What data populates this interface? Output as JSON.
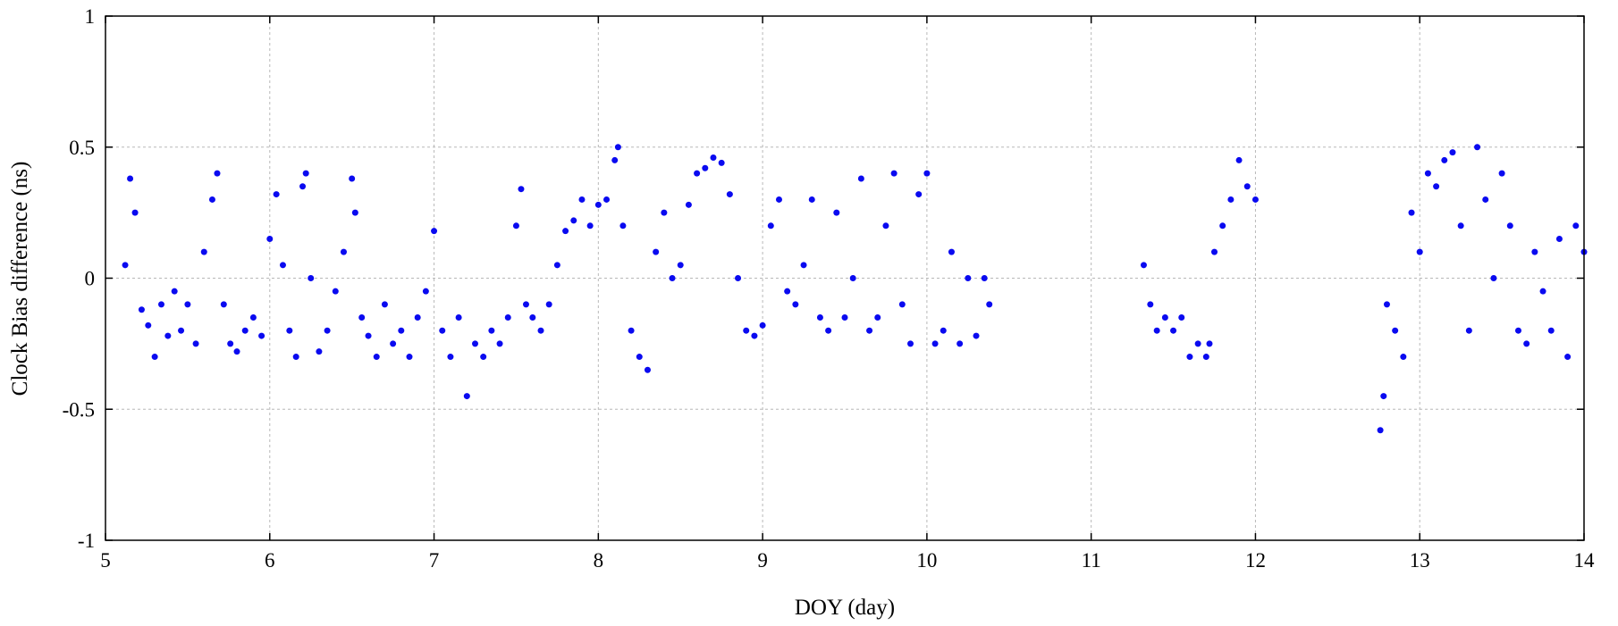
{
  "chart_data": {
    "type": "scatter",
    "title": "",
    "xlabel": "DOY (day)",
    "ylabel": "Clock Bias difference (ns)",
    "xlim": [
      5,
      14
    ],
    "ylim": [
      -1,
      1
    ],
    "x_ticks": [
      "5",
      "6",
      "7",
      "8",
      "9",
      "10",
      "11",
      "12",
      "13",
      "14"
    ],
    "y_ticks": [
      "1",
      "0.5",
      "0",
      "-0.5",
      "-1"
    ],
    "grid": true,
    "marker_color": "#0a0af0",
    "series": [
      {
        "x": [
          5.12,
          5.15,
          5.18,
          5.22,
          5.26,
          5.3,
          5.34,
          5.38,
          5.42,
          5.46,
          5.5,
          5.55,
          5.6,
          5.65,
          5.68,
          5.72,
          5.76,
          5.8,
          5.85,
          5.9,
          5.95,
          6.0,
          6.04,
          6.08,
          6.12,
          6.16,
          6.2,
          6.22,
          6.25,
          6.3,
          6.35,
          6.4,
          6.45,
          6.5,
          6.52,
          6.56,
          6.6,
          6.65,
          6.7,
          6.75,
          6.8,
          6.85,
          6.9,
          6.95,
          7.0,
          7.05,
          7.1,
          7.15,
          7.2,
          7.25,
          7.3,
          7.35,
          7.4,
          7.45,
          7.5,
          7.53,
          7.56,
          7.6,
          7.65,
          7.7,
          7.75,
          7.8,
          7.85,
          7.9,
          7.95,
          8.0,
          8.05,
          8.1,
          8.12,
          8.15,
          8.2,
          8.25,
          8.3,
          8.35,
          8.4,
          8.45,
          8.5,
          8.55,
          8.6,
          8.65,
          8.7,
          8.75,
          8.8,
          8.85,
          8.9,
          8.95,
          9.0,
          9.05,
          9.1,
          9.15,
          9.2,
          9.25,
          9.3,
          9.35,
          9.4,
          9.45,
          9.5,
          9.55,
          9.6,
          9.65,
          9.7,
          9.75,
          9.8,
          9.85,
          9.9,
          9.95,
          10.0,
          10.05,
          10.1,
          10.15,
          10.2,
          10.25,
          10.3,
          10.35,
          10.38,
          11.32,
          11.36,
          11.4,
          11.45,
          11.5,
          11.55,
          11.6,
          11.65,
          11.7,
          11.72,
          11.75,
          11.8,
          11.85,
          11.9,
          11.95,
          12.0,
          12.76,
          12.78,
          12.8,
          12.85,
          12.9,
          12.95,
          13.0,
          13.05,
          13.1,
          13.15,
          13.2,
          13.25,
          13.3,
          13.35,
          13.4,
          13.45,
          13.5,
          13.55,
          13.6,
          13.65,
          13.7,
          13.75,
          13.8,
          13.85,
          13.9,
          13.95,
          14.0
        ],
        "y": [
          0.05,
          0.38,
          0.25,
          -0.12,
          -0.18,
          -0.3,
          -0.1,
          -0.22,
          -0.05,
          -0.2,
          -0.1,
          -0.25,
          0.1,
          0.3,
          0.4,
          -0.1,
          -0.25,
          -0.28,
          -0.2,
          -0.15,
          -0.22,
          0.15,
          0.32,
          0.05,
          -0.2,
          -0.3,
          0.35,
          0.4,
          0.0,
          -0.28,
          -0.2,
          -0.05,
          0.1,
          0.38,
          0.25,
          -0.15,
          -0.22,
          -0.3,
          -0.1,
          -0.25,
          -0.2,
          -0.3,
          -0.15,
          -0.05,
          0.18,
          -0.2,
          -0.3,
          -0.15,
          -0.45,
          -0.25,
          -0.3,
          -0.2,
          -0.25,
          -0.15,
          0.2,
          0.34,
          -0.1,
          -0.15,
          -0.2,
          -0.1,
          0.05,
          0.18,
          0.22,
          0.3,
          0.2,
          0.28,
          0.3,
          0.45,
          0.5,
          0.2,
          -0.2,
          -0.3,
          -0.35,
          0.1,
          0.25,
          0.0,
          0.05,
          0.28,
          0.4,
          0.42,
          0.46,
          0.44,
          0.32,
          0.0,
          -0.2,
          -0.22,
          -0.18,
          0.2,
          0.3,
          -0.05,
          -0.1,
          0.05,
          0.3,
          -0.15,
          -0.2,
          0.25,
          -0.15,
          0.0,
          0.38,
          -0.2,
          -0.15,
          0.2,
          0.4,
          -0.1,
          -0.25,
          0.32,
          0.4,
          -0.25,
          -0.2,
          0.1,
          -0.25,
          0.0,
          -0.22,
          0.0,
          -0.1,
          0.05,
          -0.1,
          -0.2,
          -0.15,
          -0.2,
          -0.15,
          -0.3,
          -0.25,
          -0.3,
          -0.25,
          0.1,
          0.2,
          0.3,
          0.45,
          0.35,
          0.3,
          -0.58,
          -0.45,
          -0.1,
          -0.2,
          -0.3,
          0.25,
          0.1,
          0.4,
          0.35,
          0.45,
          0.48,
          0.2,
          -0.2,
          0.5,
          0.3,
          0.0,
          0.4,
          0.2,
          -0.2,
          -0.25,
          0.1,
          -0.05,
          -0.2,
          0.15,
          -0.3,
          0.2,
          0.1
        ]
      }
    ]
  }
}
